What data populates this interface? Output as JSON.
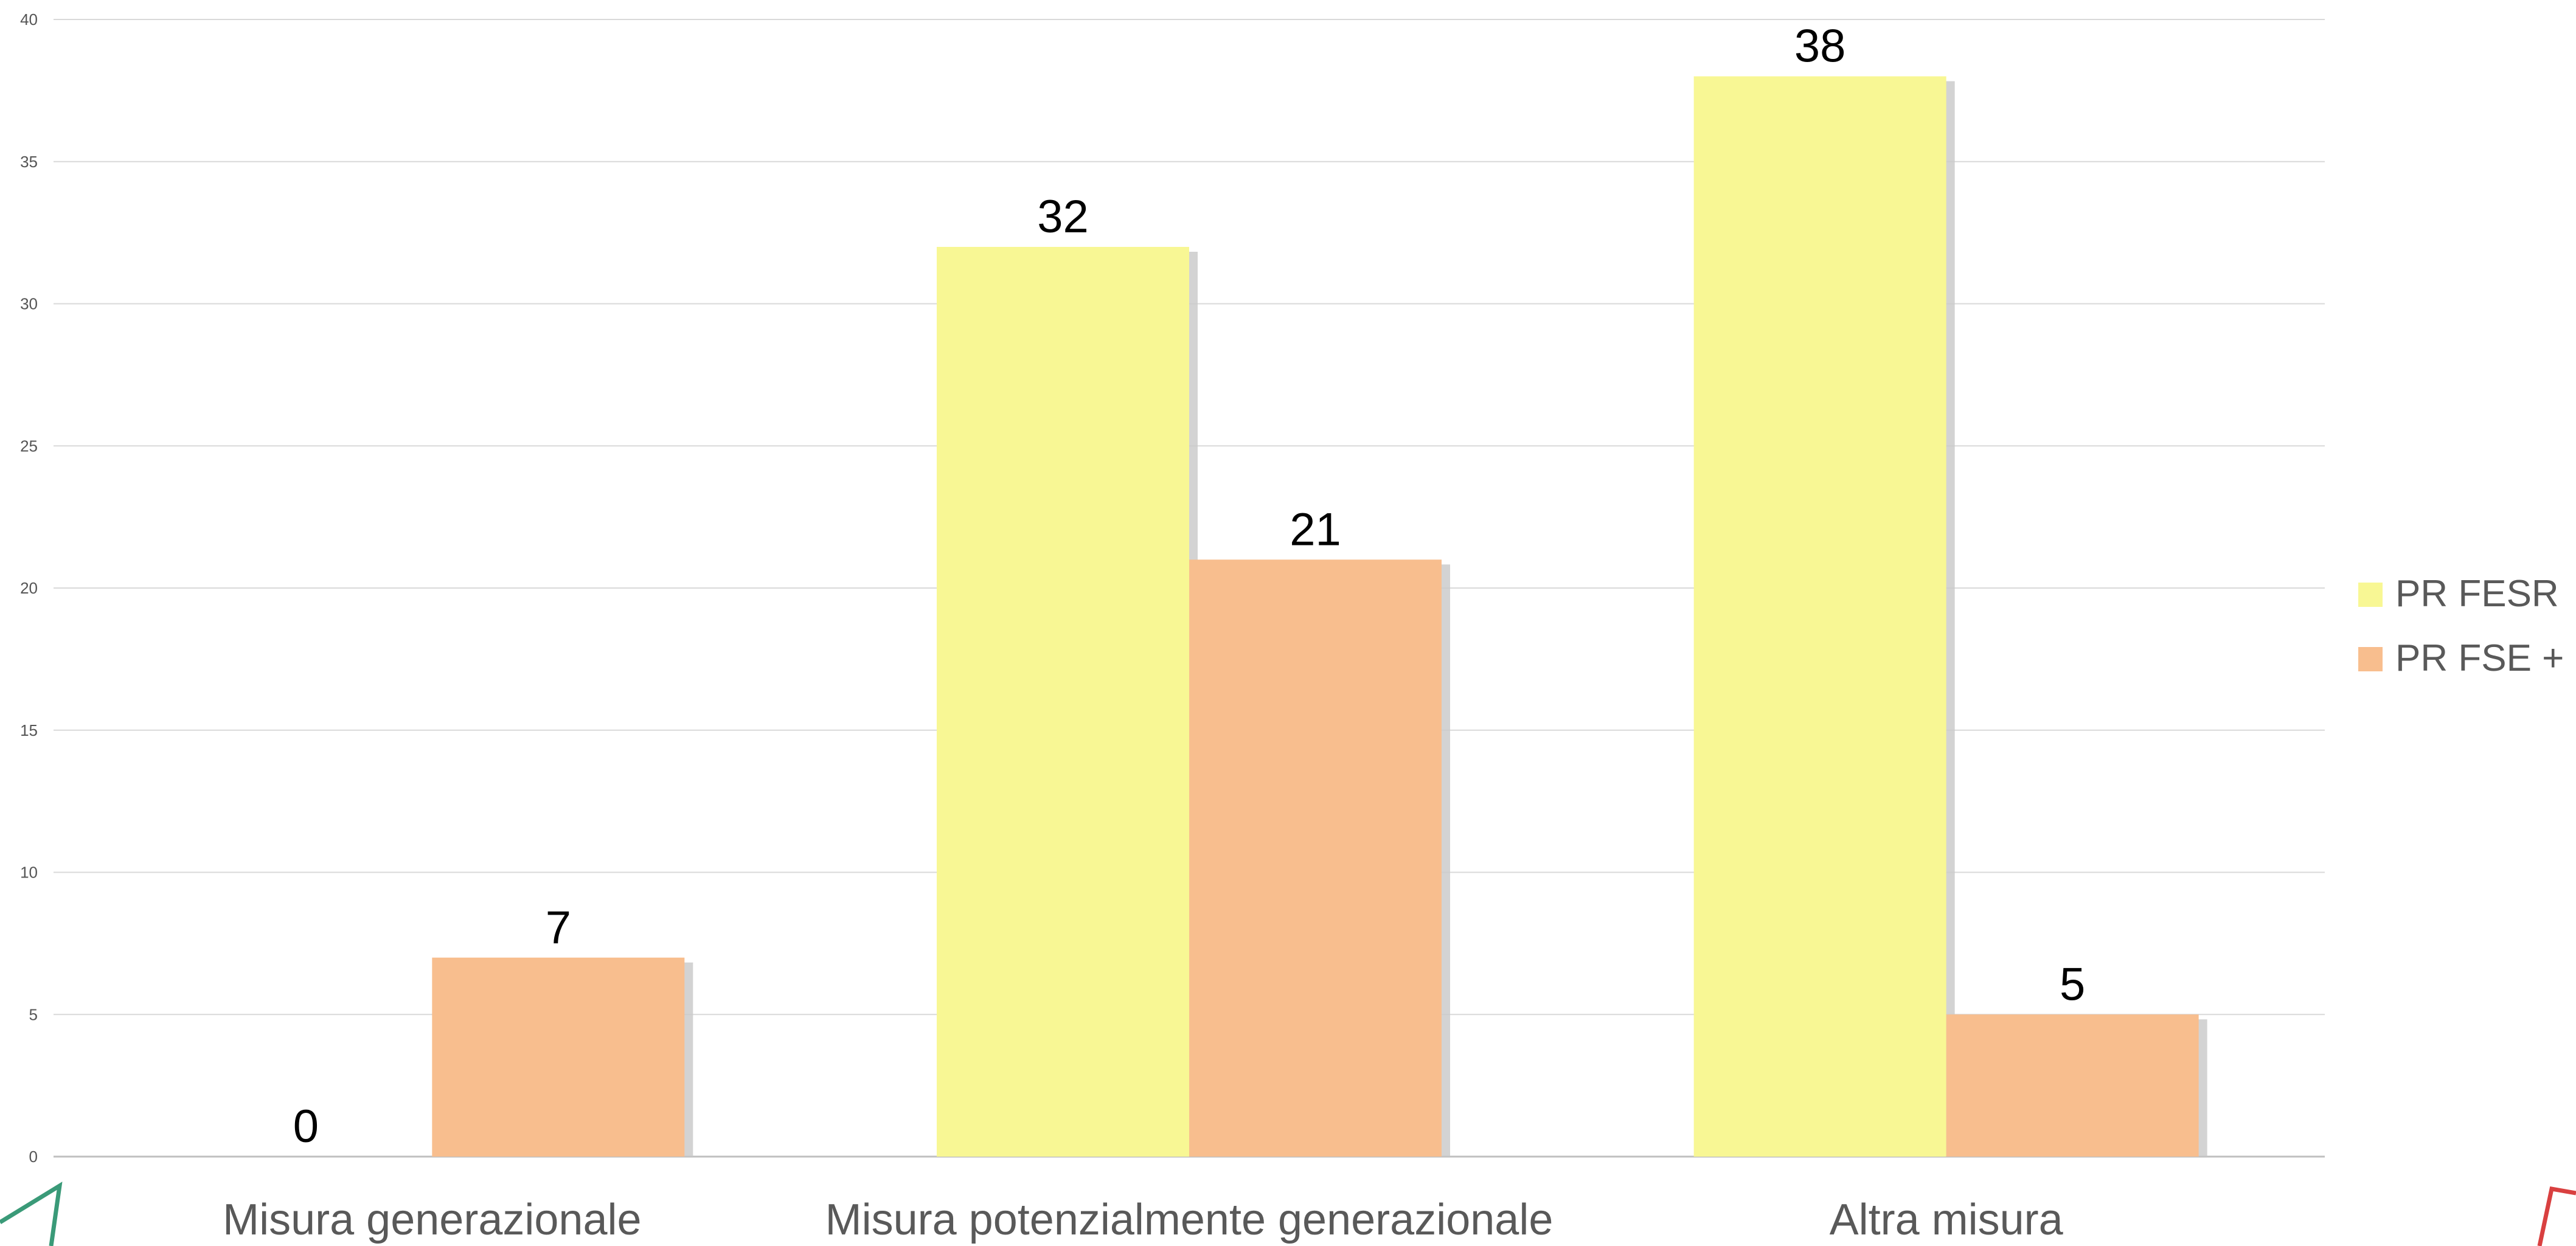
{
  "chart_data": {
    "type": "bar",
    "categories": [
      "Misura generazionale",
      "Misura potenzialmente generazionale",
      "Altra misura"
    ],
    "series": [
      {
        "name": "PR FESR",
        "values": [
          0,
          32,
          38
        ],
        "color": "#f8f794"
      },
      {
        "name": "PR FSE +",
        "values": [
          7,
          21,
          5
        ],
        "color": "#f8be8e"
      }
    ],
    "ylim": [
      0,
      40
    ],
    "yticks": [
      0,
      5,
      10,
      15,
      20,
      25,
      30,
      35,
      40
    ],
    "grid": true,
    "legend": "right",
    "data_labels": true
  },
  "decorations": {
    "left_corner_color": "#3a9a78",
    "right_corner_color": "#d94040"
  }
}
